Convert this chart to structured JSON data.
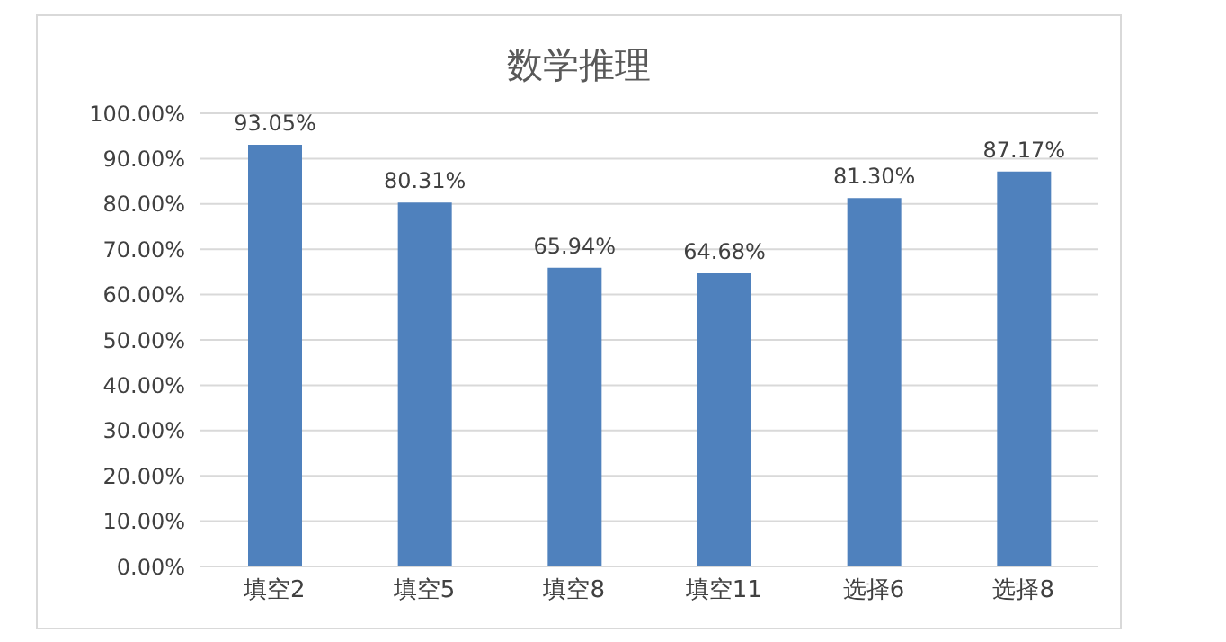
{
  "chart_data": {
    "type": "bar",
    "title": "数学推理",
    "categories": [
      "填空2",
      "填空5",
      "填空8",
      "填空11",
      "选择6",
      "选择8"
    ],
    "values": [
      93.05,
      80.31,
      65.94,
      64.68,
      81.3,
      87.17
    ],
    "value_labels": [
      "93.05%",
      "80.31%",
      "65.94%",
      "64.68%",
      "81.30%",
      "87.17%"
    ],
    "color": "#4f81bd",
    "ylim": [
      0,
      100
    ],
    "yticks": [
      {
        "value": 0,
        "label": "0.00%"
      },
      {
        "value": 10,
        "label": "10.00%"
      },
      {
        "value": 20,
        "label": "20.00%"
      },
      {
        "value": 30,
        "label": "30.00%"
      },
      {
        "value": 40,
        "label": "40.00%"
      },
      {
        "value": 50,
        "label": "50.00%"
      },
      {
        "value": 60,
        "label": "60.00%"
      },
      {
        "value": 70,
        "label": "70.00%"
      },
      {
        "value": 80,
        "label": "80.00%"
      },
      {
        "value": 90,
        "label": "90.00%"
      },
      {
        "value": 100,
        "label": "100.00%"
      }
    ],
    "grid": "y"
  }
}
